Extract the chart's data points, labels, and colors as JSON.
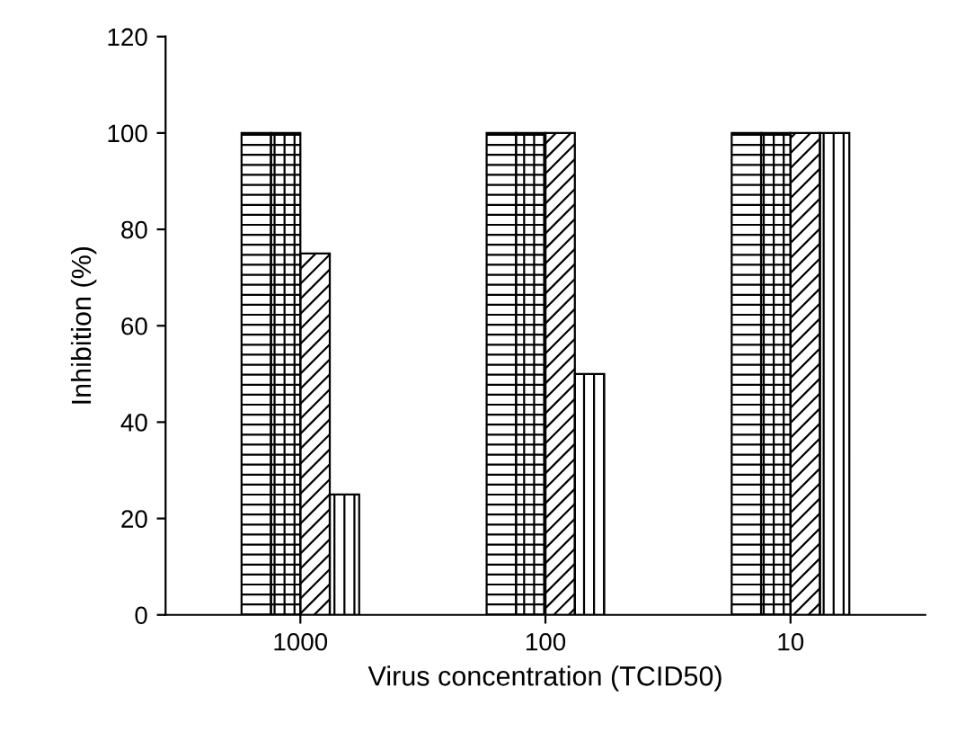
{
  "chart_data": {
    "type": "bar",
    "xlabel": "Virus concentration (TCID50)",
    "ylabel": "Inhibition (%)",
    "categories": [
      "1000",
      "100",
      "10"
    ],
    "series": [
      {
        "color": "#000000",
        "values": [
          100,
          100,
          100
        ]
      },
      {
        "color": "#000000",
        "values": [
          100,
          100,
          100
        ]
      },
      {
        "color": "#000000",
        "values": [
          75,
          100,
          100
        ]
      },
      {
        "color": "#000000",
        "values": [
          25,
          50,
          100
        ]
      }
    ],
    "ylim": [
      0,
      120
    ],
    "yticks": [
      0,
      20,
      40,
      60,
      80,
      100,
      120
    ],
    "grid": false,
    "legend": false
  }
}
